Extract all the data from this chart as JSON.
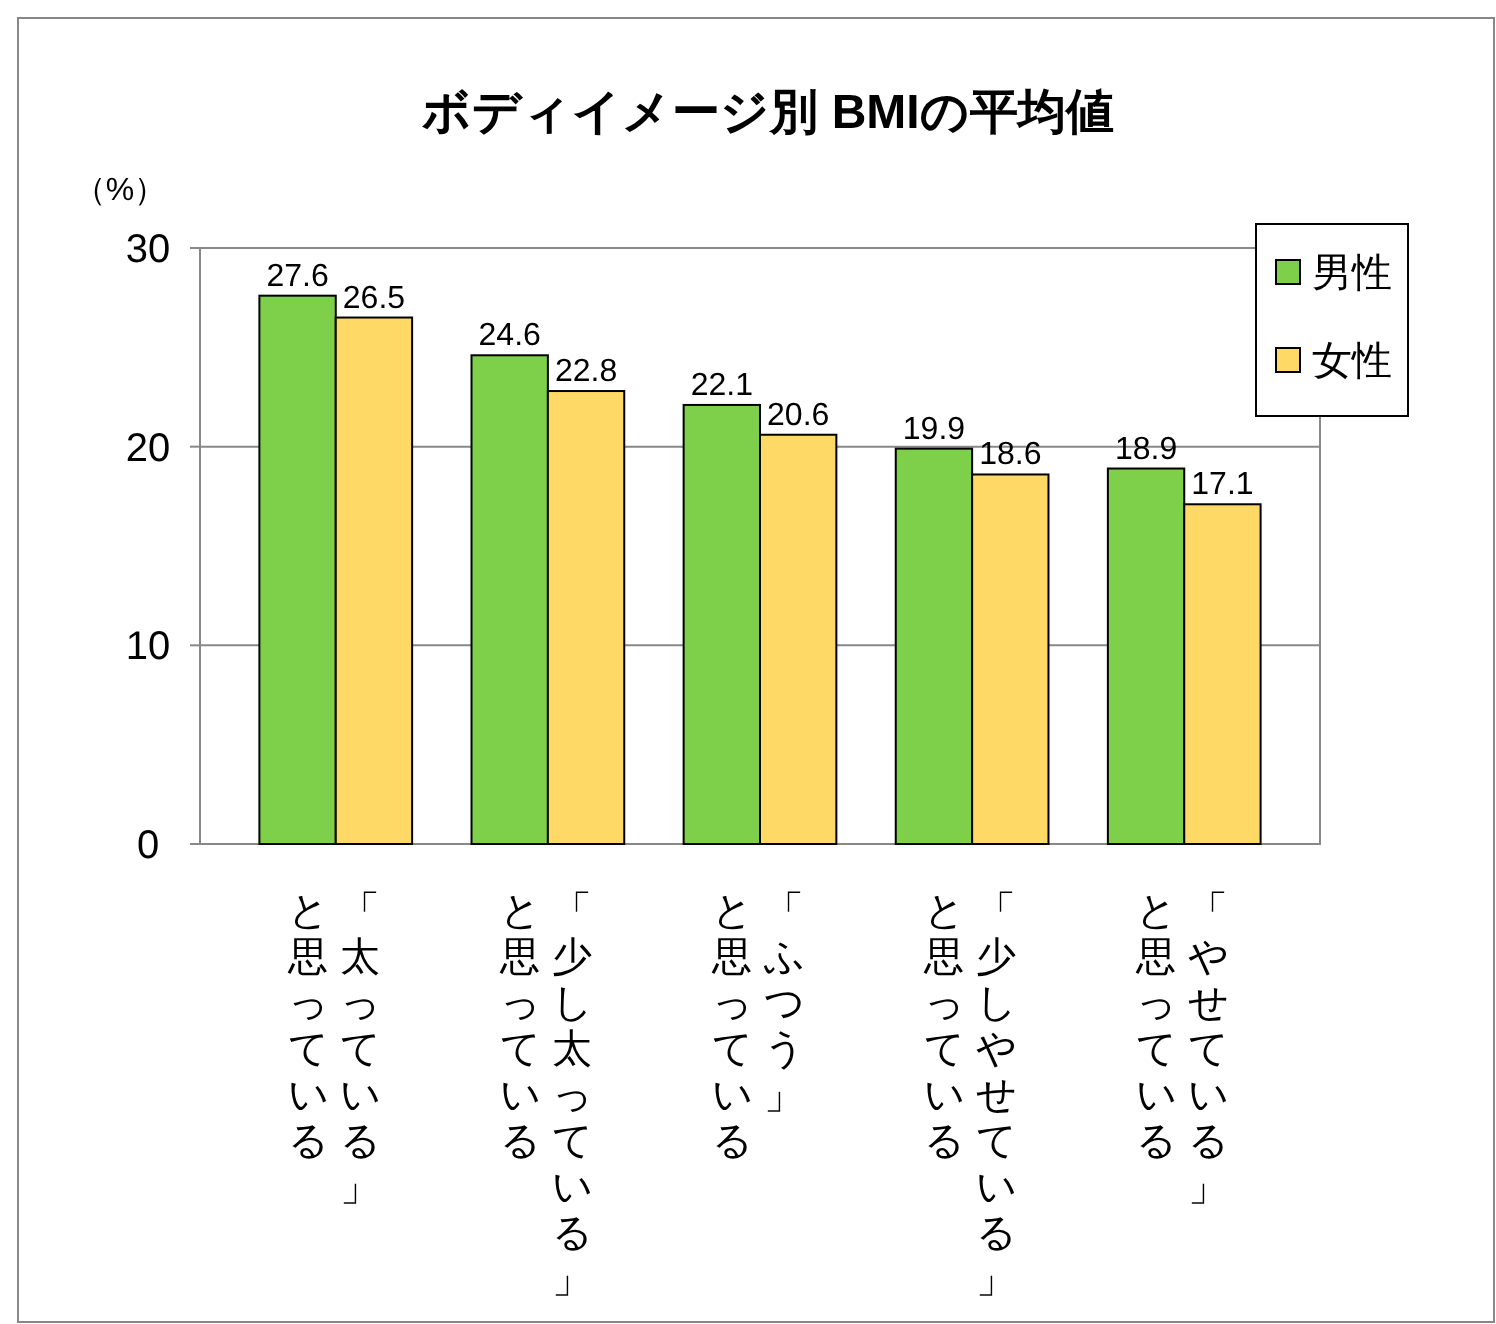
{
  "chart_data": {
    "type": "bar",
    "title": "ボディイメージ別 BMIの平均値",
    "ylabel": "（%）",
    "categories": [
      "「太っている」と思っている",
      "「少し太っている」と思っている",
      "「ふつう」と思っている",
      "「少しやせている」と思っている",
      "「やせている」と思っている"
    ],
    "series": [
      {
        "name": "男性",
        "color": "#7ed04b",
        "values": [
          27.6,
          24.6,
          22.1,
          19.9,
          18.9
        ]
      },
      {
        "name": "女性",
        "color": "#ffd966",
        "values": [
          26.5,
          22.8,
          20.6,
          18.6,
          17.1
        ]
      }
    ],
    "ylim": [
      0,
      30
    ],
    "yticks": [
      0,
      10,
      20,
      30
    ],
    "grid": "y",
    "legend": "top right",
    "data_labels": true
  }
}
